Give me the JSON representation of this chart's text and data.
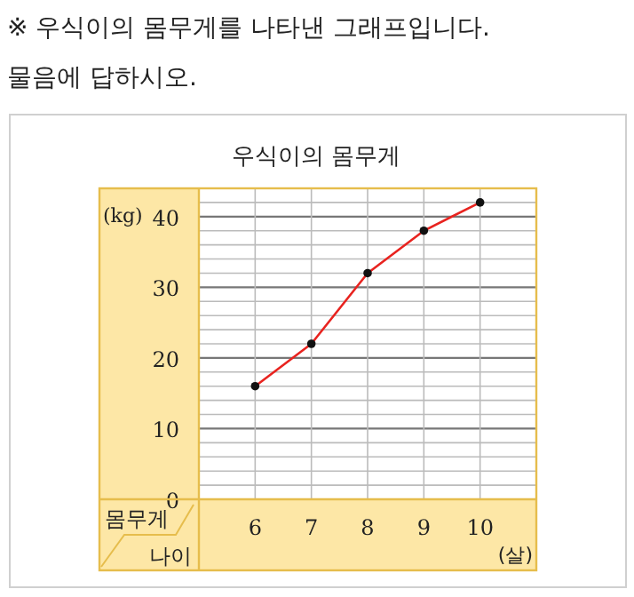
{
  "chart_data": {
    "type": "line",
    "title": "우식이의 몸무게",
    "annotations": [
      "※ 우식이의 몸무게를 나타낸 그래프입니다.",
      "물음에 답하시오.",
      "몸무게",
      "나이"
    ],
    "ylabel": "(kg)",
    "xlabel": "(살)",
    "categories": [
      "6",
      "7",
      "8",
      "9",
      "10"
    ],
    "series": [
      {
        "color": "#e8231f",
        "values": [
          16,
          22,
          32,
          38,
          42
        ]
      }
    ],
    "marker": "circle",
    "line_style": "solid",
    "grid": true,
    "ylim": [
      0,
      44
    ],
    "yticks": [
      0,
      {
        "value": 2,
        "label": null
      },
      {
        "value": 4,
        "label": null
      },
      {
        "value": 6,
        "label": null
      },
      {
        "value": 8,
        "label": null
      },
      10,
      {
        "value": 12,
        "label": null
      },
      {
        "value": 14,
        "label": null
      },
      {
        "value": 16,
        "label": null
      },
      {
        "value": 18,
        "label": null
      },
      20,
      {
        "value": 22,
        "label": null
      },
      {
        "value": 24,
        "label": null
      },
      {
        "value": 26,
        "label": null
      },
      {
        "value": 28,
        "label": null
      },
      30,
      {
        "value": 32,
        "label": null
      },
      {
        "value": 34,
        "label": null
      },
      {
        "value": 36,
        "label": null
      },
      {
        "value": 38,
        "label": null
      },
      40,
      {
        "value": 42,
        "label": null
      }
    ]
  }
}
